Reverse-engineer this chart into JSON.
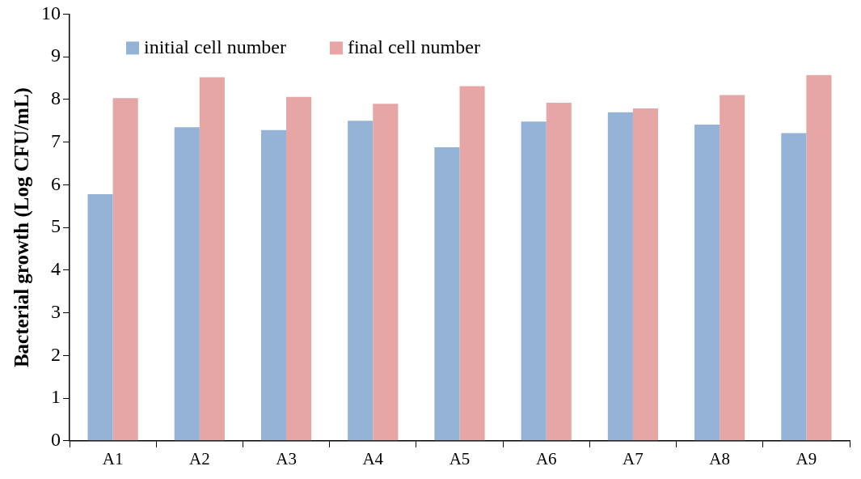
{
  "chart_data": {
    "type": "bar",
    "ylabel": "Bacterial growth (Log CFU/mL)",
    "categories": [
      "A1",
      "A2",
      "A3",
      "A4",
      "A5",
      "A6",
      "A7",
      "A8",
      "A9"
    ],
    "series": [
      {
        "name": "initial cell number",
        "color": "#95b3d7",
        "values": [
          5.78,
          7.35,
          7.28,
          7.5,
          6.88,
          7.48,
          7.7,
          7.41,
          7.21
        ]
      },
      {
        "name": "final cell number",
        "color": "#e6a6a6",
        "values": [
          8.03,
          8.52,
          8.06,
          7.9,
          8.31,
          7.92,
          7.79,
          8.1,
          8.57
        ]
      }
    ],
    "ylim": [
      0,
      10
    ],
    "yticks": [
      0,
      1,
      2,
      3,
      4,
      5,
      6,
      7,
      8,
      9,
      10
    ],
    "grid": false,
    "legend": "top left"
  }
}
